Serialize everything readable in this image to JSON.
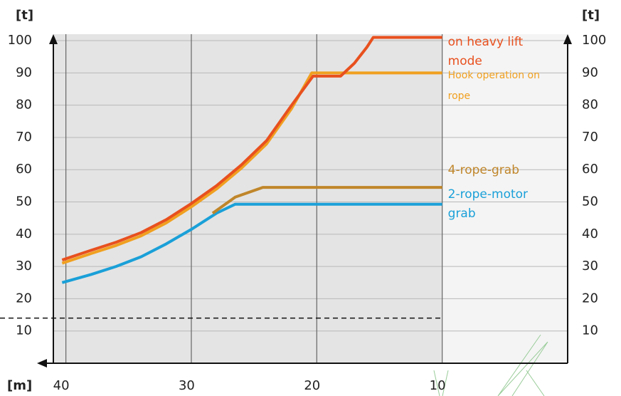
{
  "chart_data": {
    "type": "line",
    "y_axis_label": "[t]",
    "x_axis_label": "[m]",
    "xlim": [
      41,
      0
    ],
    "ylim": [
      0,
      102
    ],
    "xticks": [
      40,
      30,
      20,
      10
    ],
    "yticks": [
      10,
      20,
      30,
      40,
      50,
      60,
      70,
      80,
      90,
      100
    ],
    "grid": true,
    "gray_area_end": 10,
    "reference_line": 14,
    "series": [
      {
        "name": "on heavy lift mode",
        "color": "#e8501e",
        "x": [
          40.3,
          38,
          36,
          34,
          32,
          30,
          28,
          26,
          24,
          22,
          20.3,
          18.1,
          17,
          16,
          15.5,
          10
        ],
        "values": [
          32,
          35,
          37.5,
          40.5,
          44.5,
          49.5,
          55,
          61.5,
          69,
          80,
          89,
          89,
          93,
          98,
          101,
          101
        ]
      },
      {
        "name": "Hook operation on rope",
        "color": "#f0a020",
        "x": [
          40.3,
          38,
          36,
          34,
          32,
          30,
          28,
          26,
          24,
          22,
          20.4,
          10
        ],
        "values": [
          31,
          34,
          36.5,
          39.5,
          43.5,
          48.5,
          54,
          60.5,
          68,
          79,
          90,
          90
        ]
      },
      {
        "name": "4-rope-grab",
        "color": "#c0862a",
        "x": [
          28.3,
          26.5,
          24.3,
          10
        ],
        "values": [
          46.5,
          51.5,
          54.5,
          54.5
        ]
      },
      {
        "name": "2-rope-motor grab",
        "color": "#1aa0d8",
        "x": [
          40.3,
          38,
          36,
          34,
          32,
          30,
          28,
          26.5,
          10
        ],
        "values": [
          25,
          27.5,
          30,
          33,
          37,
          41.5,
          46.5,
          49.3,
          49.3
        ]
      }
    ]
  }
}
